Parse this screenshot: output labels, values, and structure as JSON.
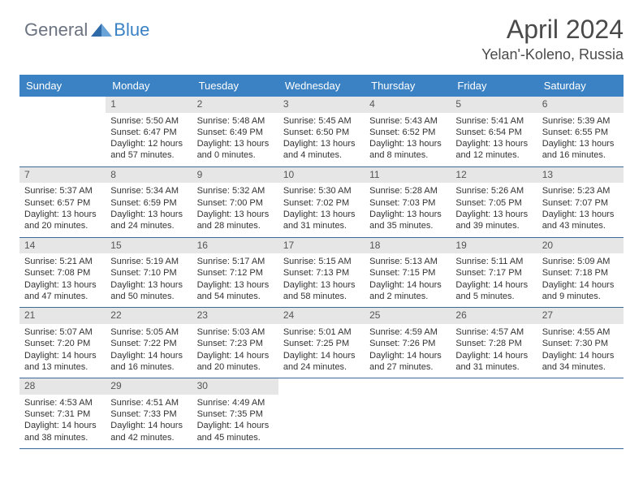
{
  "logo": {
    "general": "General",
    "blue": "Blue"
  },
  "title": "April 2024",
  "location": "Yelan'-Koleno, Russia",
  "colors": {
    "header_bg": "#3b82c4",
    "header_text": "#ffffff",
    "daynum_bg": "#e6e6e6",
    "row_border": "#3b6a9a",
    "text": "#333333"
  },
  "weekdays": [
    "Sunday",
    "Monday",
    "Tuesday",
    "Wednesday",
    "Thursday",
    "Friday",
    "Saturday"
  ],
  "weeks": [
    [
      {
        "n": "",
        "empty": true
      },
      {
        "n": "1",
        "sr": "Sunrise: 5:50 AM",
        "ss": "Sunset: 6:47 PM",
        "d1": "Daylight: 12 hours",
        "d2": "and 57 minutes."
      },
      {
        "n": "2",
        "sr": "Sunrise: 5:48 AM",
        "ss": "Sunset: 6:49 PM",
        "d1": "Daylight: 13 hours",
        "d2": "and 0 minutes."
      },
      {
        "n": "3",
        "sr": "Sunrise: 5:45 AM",
        "ss": "Sunset: 6:50 PM",
        "d1": "Daylight: 13 hours",
        "d2": "and 4 minutes."
      },
      {
        "n": "4",
        "sr": "Sunrise: 5:43 AM",
        "ss": "Sunset: 6:52 PM",
        "d1": "Daylight: 13 hours",
        "d2": "and 8 minutes."
      },
      {
        "n": "5",
        "sr": "Sunrise: 5:41 AM",
        "ss": "Sunset: 6:54 PM",
        "d1": "Daylight: 13 hours",
        "d2": "and 12 minutes."
      },
      {
        "n": "6",
        "sr": "Sunrise: 5:39 AM",
        "ss": "Sunset: 6:55 PM",
        "d1": "Daylight: 13 hours",
        "d2": "and 16 minutes."
      }
    ],
    [
      {
        "n": "7",
        "sr": "Sunrise: 5:37 AM",
        "ss": "Sunset: 6:57 PM",
        "d1": "Daylight: 13 hours",
        "d2": "and 20 minutes."
      },
      {
        "n": "8",
        "sr": "Sunrise: 5:34 AM",
        "ss": "Sunset: 6:59 PM",
        "d1": "Daylight: 13 hours",
        "d2": "and 24 minutes."
      },
      {
        "n": "9",
        "sr": "Sunrise: 5:32 AM",
        "ss": "Sunset: 7:00 PM",
        "d1": "Daylight: 13 hours",
        "d2": "and 28 minutes."
      },
      {
        "n": "10",
        "sr": "Sunrise: 5:30 AM",
        "ss": "Sunset: 7:02 PM",
        "d1": "Daylight: 13 hours",
        "d2": "and 31 minutes."
      },
      {
        "n": "11",
        "sr": "Sunrise: 5:28 AM",
        "ss": "Sunset: 7:03 PM",
        "d1": "Daylight: 13 hours",
        "d2": "and 35 minutes."
      },
      {
        "n": "12",
        "sr": "Sunrise: 5:26 AM",
        "ss": "Sunset: 7:05 PM",
        "d1": "Daylight: 13 hours",
        "d2": "and 39 minutes."
      },
      {
        "n": "13",
        "sr": "Sunrise: 5:23 AM",
        "ss": "Sunset: 7:07 PM",
        "d1": "Daylight: 13 hours",
        "d2": "and 43 minutes."
      }
    ],
    [
      {
        "n": "14",
        "sr": "Sunrise: 5:21 AM",
        "ss": "Sunset: 7:08 PM",
        "d1": "Daylight: 13 hours",
        "d2": "and 47 minutes."
      },
      {
        "n": "15",
        "sr": "Sunrise: 5:19 AM",
        "ss": "Sunset: 7:10 PM",
        "d1": "Daylight: 13 hours",
        "d2": "and 50 minutes."
      },
      {
        "n": "16",
        "sr": "Sunrise: 5:17 AM",
        "ss": "Sunset: 7:12 PM",
        "d1": "Daylight: 13 hours",
        "d2": "and 54 minutes."
      },
      {
        "n": "17",
        "sr": "Sunrise: 5:15 AM",
        "ss": "Sunset: 7:13 PM",
        "d1": "Daylight: 13 hours",
        "d2": "and 58 minutes."
      },
      {
        "n": "18",
        "sr": "Sunrise: 5:13 AM",
        "ss": "Sunset: 7:15 PM",
        "d1": "Daylight: 14 hours",
        "d2": "and 2 minutes."
      },
      {
        "n": "19",
        "sr": "Sunrise: 5:11 AM",
        "ss": "Sunset: 7:17 PM",
        "d1": "Daylight: 14 hours",
        "d2": "and 5 minutes."
      },
      {
        "n": "20",
        "sr": "Sunrise: 5:09 AM",
        "ss": "Sunset: 7:18 PM",
        "d1": "Daylight: 14 hours",
        "d2": "and 9 minutes."
      }
    ],
    [
      {
        "n": "21",
        "sr": "Sunrise: 5:07 AM",
        "ss": "Sunset: 7:20 PM",
        "d1": "Daylight: 14 hours",
        "d2": "and 13 minutes."
      },
      {
        "n": "22",
        "sr": "Sunrise: 5:05 AM",
        "ss": "Sunset: 7:22 PM",
        "d1": "Daylight: 14 hours",
        "d2": "and 16 minutes."
      },
      {
        "n": "23",
        "sr": "Sunrise: 5:03 AM",
        "ss": "Sunset: 7:23 PM",
        "d1": "Daylight: 14 hours",
        "d2": "and 20 minutes."
      },
      {
        "n": "24",
        "sr": "Sunrise: 5:01 AM",
        "ss": "Sunset: 7:25 PM",
        "d1": "Daylight: 14 hours",
        "d2": "and 24 minutes."
      },
      {
        "n": "25",
        "sr": "Sunrise: 4:59 AM",
        "ss": "Sunset: 7:26 PM",
        "d1": "Daylight: 14 hours",
        "d2": "and 27 minutes."
      },
      {
        "n": "26",
        "sr": "Sunrise: 4:57 AM",
        "ss": "Sunset: 7:28 PM",
        "d1": "Daylight: 14 hours",
        "d2": "and 31 minutes."
      },
      {
        "n": "27",
        "sr": "Sunrise: 4:55 AM",
        "ss": "Sunset: 7:30 PM",
        "d1": "Daylight: 14 hours",
        "d2": "and 34 minutes."
      }
    ],
    [
      {
        "n": "28",
        "sr": "Sunrise: 4:53 AM",
        "ss": "Sunset: 7:31 PM",
        "d1": "Daylight: 14 hours",
        "d2": "and 38 minutes."
      },
      {
        "n": "29",
        "sr": "Sunrise: 4:51 AM",
        "ss": "Sunset: 7:33 PM",
        "d1": "Daylight: 14 hours",
        "d2": "and 42 minutes."
      },
      {
        "n": "30",
        "sr": "Sunrise: 4:49 AM",
        "ss": "Sunset: 7:35 PM",
        "d1": "Daylight: 14 hours",
        "d2": "and 45 minutes."
      },
      {
        "n": "",
        "empty": true
      },
      {
        "n": "",
        "empty": true
      },
      {
        "n": "",
        "empty": true
      },
      {
        "n": "",
        "empty": true
      }
    ]
  ]
}
